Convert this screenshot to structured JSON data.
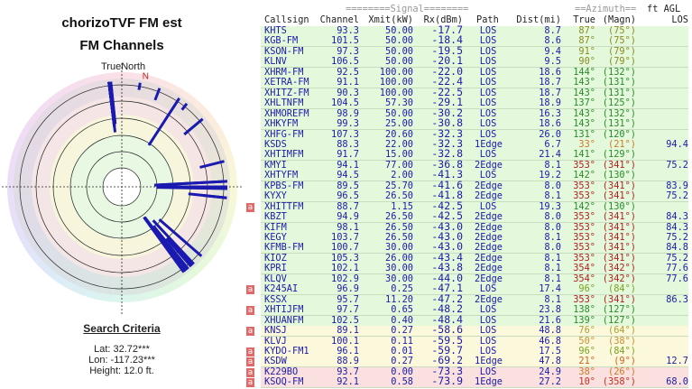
{
  "title": "chorizoTVF FM est",
  "subtitle": "FM Channels",
  "plot": {
    "true_north_label": "TrueNorth",
    "magnetic_label": "N",
    "declination_deg": 12
  },
  "search": {
    "heading": "Search Criteria",
    "lat": "Lat: 32.72***",
    "lon": "Lon: -117.23***",
    "height": "Height: 12.0 ft."
  },
  "table": {
    "group_signal": "========Signal========",
    "group_azimuth": "==Azimuth==",
    "group_agl": "ft AGL",
    "columns": [
      "Callsign",
      "Channel",
      "Xmit(kW)",
      "Rx(dBm)",
      "Path",
      "Dist(mi)",
      "True",
      "(Magn)",
      "LOS"
    ],
    "rows": [
      {
        "c": "KHTS",
        "ch": "93.3",
        "x": "50.00",
        "rx": "-17.7",
        "p": "LOS",
        "d": "8.7",
        "t": "87°",
        "m": "(75°)",
        "l": "",
        "az": 87,
        "col": "#8a8a20",
        "bg": "g",
        "a": false
      },
      {
        "c": "KGB-FM",
        "ch": "101.5",
        "x": "50.00",
        "rx": "-18.4",
        "p": "LOS",
        "d": "8.6",
        "t": "87°",
        "m": "(75°)",
        "l": "",
        "az": 87,
        "col": "#8a8a20",
        "bg": "g",
        "a": false
      },
      {
        "c": "KSON-FM",
        "ch": "97.3",
        "x": "50.00",
        "rx": "-19.5",
        "p": "LOS",
        "d": "9.4",
        "t": "91°",
        "m": "(79°)",
        "l": "",
        "az": 91,
        "col": "#8a8a20",
        "bg": "g",
        "a": false
      },
      {
        "c": "KLNV",
        "ch": "106.5",
        "x": "50.00",
        "rx": "-20.1",
        "p": "LOS",
        "d": "9.5",
        "t": "90°",
        "m": "(79°)",
        "l": "",
        "az": 90,
        "col": "#8a8a20",
        "bg": "g",
        "a": false
      },
      {
        "c": "XHRM-FM",
        "ch": "92.5",
        "x": "100.00",
        "rx": "-22.0",
        "p": "LOS",
        "d": "18.6",
        "t": "144°",
        "m": "(132°)",
        "l": "",
        "az": 144,
        "col": "#2a8a2a",
        "bg": "g",
        "a": false
      },
      {
        "c": "XETRA-FM",
        "ch": "91.1",
        "x": "100.00",
        "rx": "-22.4",
        "p": "LOS",
        "d": "18.7",
        "t": "143°",
        "m": "(131°)",
        "l": "",
        "az": 143,
        "col": "#2a8a2a",
        "bg": "g",
        "a": false
      },
      {
        "c": "XHITZ-FM",
        "ch": "90.3",
        "x": "100.00",
        "rx": "-22.5",
        "p": "LOS",
        "d": "18.7",
        "t": "143°",
        "m": "(131°)",
        "l": "",
        "az": 143,
        "col": "#2a8a2a",
        "bg": "g",
        "a": false
      },
      {
        "c": "XHLTNFM",
        "ch": "104.5",
        "x": "57.30",
        "rx": "-29.1",
        "p": "LOS",
        "d": "18.9",
        "t": "137°",
        "m": "(125°)",
        "l": "",
        "az": 137,
        "col": "#2a8a2a",
        "bg": "g",
        "a": false
      },
      {
        "c": "XHMOREFM",
        "ch": "98.9",
        "x": "50.00",
        "rx": "-30.2",
        "p": "LOS",
        "d": "16.3",
        "t": "143°",
        "m": "(132°)",
        "l": "",
        "az": 143,
        "col": "#2a8a2a",
        "bg": "g",
        "a": false
      },
      {
        "c": "XHKYFM",
        "ch": "99.3",
        "x": "25.00",
        "rx": "-30.8",
        "p": "LOS",
        "d": "18.6",
        "t": "143°",
        "m": "(131°)",
        "l": "",
        "az": 143,
        "col": "#2a8a2a",
        "bg": "g",
        "a": false
      },
      {
        "c": "XHFG-FM",
        "ch": "107.3",
        "x": "20.60",
        "rx": "-32.3",
        "p": "LOS",
        "d": "26.0",
        "t": "131°",
        "m": "(120°)",
        "l": "",
        "az": 131,
        "col": "#2a8a2a",
        "bg": "g",
        "a": false
      },
      {
        "c": "KSDS",
        "ch": "88.3",
        "x": "22.00",
        "rx": "-32.3",
        "p": "1Edge",
        "d": "6.7",
        "t": "33°",
        "m": "(21°)",
        "l": "94.4",
        "az": 33,
        "col": "#d07820",
        "bg": "g",
        "a": false
      },
      {
        "c": "XHTIMFM",
        "ch": "91.7",
        "x": "15.00",
        "rx": "-32.8",
        "p": "LOS",
        "d": "21.4",
        "t": "141°",
        "m": "(129°)",
        "l": "",
        "az": 141,
        "col": "#2a8a2a",
        "bg": "g",
        "a": false
      },
      {
        "c": "KMYI",
        "ch": "94.1",
        "x": "77.00",
        "rx": "-36.8",
        "p": "2Edge",
        "d": "8.1",
        "t": "353°",
        "m": "(341°)",
        "l": "75.2",
        "az": 353,
        "col": "#b02020",
        "bg": "g",
        "a": false
      },
      {
        "c": "XHTYFM",
        "ch": "94.5",
        "x": "2.00",
        "rx": "-41.3",
        "p": "LOS",
        "d": "19.2",
        "t": "142°",
        "m": "(130°)",
        "l": "",
        "az": 142,
        "col": "#2a8a2a",
        "bg": "g",
        "a": false
      },
      {
        "c": "KPBS-FM",
        "ch": "89.5",
        "x": "25.70",
        "rx": "-41.6",
        "p": "2Edge",
        "d": "8.0",
        "t": "353°",
        "m": "(341°)",
        "l": "83.9",
        "az": 353,
        "col": "#b02020",
        "bg": "g",
        "a": false
      },
      {
        "c": "KYXY",
        "ch": "96.5",
        "x": "26.50",
        "rx": "-41.8",
        "p": "2Edge",
        "d": "8.1",
        "t": "353°",
        "m": "(341°)",
        "l": "75.2",
        "az": 353,
        "col": "#b02020",
        "bg": "g",
        "a": false
      },
      {
        "c": "XHITTFM",
        "ch": "88.7",
        "x": "1.15",
        "rx": "-42.5",
        "p": "LOS",
        "d": "19.3",
        "t": "142°",
        "m": "(130°)",
        "l": "",
        "az": 142,
        "col": "#2a8a2a",
        "bg": "g",
        "a": true
      },
      {
        "c": "KBZT",
        "ch": "94.9",
        "x": "26.50",
        "rx": "-42.5",
        "p": "2Edge",
        "d": "8.0",
        "t": "353°",
        "m": "(341°)",
        "l": "84.3",
        "az": 353,
        "col": "#b02020",
        "bg": "g",
        "a": false
      },
      {
        "c": "KIFM",
        "ch": "98.1",
        "x": "26.50",
        "rx": "-43.0",
        "p": "2Edge",
        "d": "8.0",
        "t": "353°",
        "m": "(341°)",
        "l": "84.3",
        "az": 353,
        "col": "#b02020",
        "bg": "g",
        "a": false
      },
      {
        "c": "KEGY",
        "ch": "103.7",
        "x": "26.50",
        "rx": "-43.0",
        "p": "2Edge",
        "d": "8.1",
        "t": "353°",
        "m": "(341°)",
        "l": "75.2",
        "az": 353,
        "col": "#b02020",
        "bg": "g",
        "a": false
      },
      {
        "c": "KFMB-FM",
        "ch": "100.7",
        "x": "30.00",
        "rx": "-43.0",
        "p": "2Edge",
        "d": "8.0",
        "t": "353°",
        "m": "(341°)",
        "l": "84.8",
        "az": 353,
        "col": "#b02020",
        "bg": "g",
        "a": false
      },
      {
        "c": "KIOZ",
        "ch": "105.3",
        "x": "26.00",
        "rx": "-43.4",
        "p": "2Edge",
        "d": "8.1",
        "t": "353°",
        "m": "(341°)",
        "l": "75.2",
        "az": 353,
        "col": "#b02020",
        "bg": "g",
        "a": false
      },
      {
        "c": "KPRI",
        "ch": "102.1",
        "x": "30.00",
        "rx": "-43.8",
        "p": "2Edge",
        "d": "8.1",
        "t": "354°",
        "m": "(342°)",
        "l": "77.6",
        "az": 354,
        "col": "#b02020",
        "bg": "g",
        "a": false
      },
      {
        "c": "KLQV",
        "ch": "102.9",
        "x": "30.00",
        "rx": "-44.0",
        "p": "2Edge",
        "d": "8.1",
        "t": "354°",
        "m": "(342°)",
        "l": "77.6",
        "az": 354,
        "col": "#b02020",
        "bg": "g",
        "a": false
      },
      {
        "c": "K245AI",
        "ch": "96.9",
        "x": "0.25",
        "rx": "-47.1",
        "p": "LOS",
        "d": "17.4",
        "t": "96°",
        "m": "(84°)",
        "l": "",
        "az": 96,
        "col": "#7aa020",
        "bg": "g",
        "a": true
      },
      {
        "c": "KSSX",
        "ch": "95.7",
        "x": "11.20",
        "rx": "-47.2",
        "p": "2Edge",
        "d": "8.1",
        "t": "353°",
        "m": "(341°)",
        "l": "86.3",
        "az": 353,
        "col": "#b02020",
        "bg": "g",
        "a": false
      },
      {
        "c": "XHTIJFM",
        "ch": "97.7",
        "x": "0.65",
        "rx": "-48.2",
        "p": "LOS",
        "d": "23.8",
        "t": "138°",
        "m": "(127°)",
        "l": "",
        "az": 138,
        "col": "#2a8a2a",
        "bg": "g",
        "a": true
      },
      {
        "c": "XHUANFM",
        "ch": "102.5",
        "x": "0.40",
        "rx": "-48.4",
        "p": "LOS",
        "d": "21.6",
        "t": "139°",
        "m": "(127°)",
        "l": "",
        "az": 139,
        "col": "#2a8a2a",
        "bg": "g",
        "a": false
      },
      {
        "c": "KNSJ",
        "ch": "89.1",
        "x": "0.27",
        "rx": "-58.6",
        "p": "LOS",
        "d": "48.8",
        "t": "76°",
        "m": "(64°)",
        "l": "",
        "az": 76,
        "col": "#b0a030",
        "bg": "y",
        "a": true
      },
      {
        "c": "KLVJ",
        "ch": "100.1",
        "x": "0.11",
        "rx": "-59.5",
        "p": "LOS",
        "d": "46.8",
        "t": "50°",
        "m": "(38°)",
        "l": "",
        "az": 50,
        "col": "#c89030",
        "bg": "y",
        "a": false
      },
      {
        "c": "KYDO-FM1",
        "ch": "96.1",
        "x": "0.01",
        "rx": "-59.7",
        "p": "LOS",
        "d": "17.5",
        "t": "96°",
        "m": "(84°)",
        "l": "",
        "az": 96,
        "col": "#7aa020",
        "bg": "y",
        "a": true
      },
      {
        "c": "KSDW",
        "ch": "88.9",
        "x": "0.27",
        "rx": "-69.2",
        "p": "1Edge",
        "d": "47.8",
        "t": "21°",
        "m": "(9°)",
        "l": "12.7",
        "az": 21,
        "col": "#d06020",
        "bg": "y",
        "a": true
      },
      {
        "c": "K229BO",
        "ch": "93.7",
        "x": "0.00",
        "rx": "-73.3",
        "p": "LOS",
        "d": "24.9",
        "t": "38°",
        "m": "(26°)",
        "l": "",
        "az": 38,
        "col": "#d07820",
        "bg": "r",
        "a": true
      },
      {
        "c": "KSOQ-FM",
        "ch": "92.1",
        "x": "0.58",
        "rx": "-73.9",
        "p": "1Edge",
        "d": "27.2",
        "t": "10°",
        "m": "(358°)",
        "l": "68.0",
        "az": 10,
        "col": "#c03020",
        "bg": "r",
        "a": true
      }
    ]
  }
}
